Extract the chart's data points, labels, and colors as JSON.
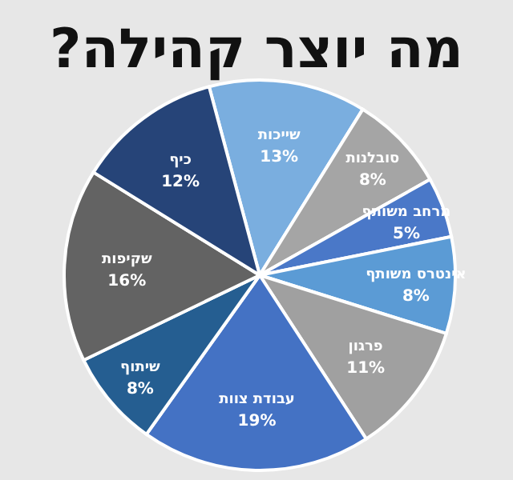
{
  "chart_data": {
    "type": "pie",
    "title": "מה יוצר קהילה?",
    "categories": [
      "שייכות",
      "סובלנות",
      "מרחב משותף",
      "אינטרס משותף",
      "פרגון",
      "עבודת צוות",
      "שיתוף",
      "שקיפות",
      "כיף"
    ],
    "values": [
      13,
      8,
      5,
      8,
      11,
      19,
      8,
      16,
      12
    ],
    "colors": [
      "#7aaedf",
      "#a5a5a5",
      "#4a78c8",
      "#5b9bd5",
      "#a0a0a0",
      "#4472c4",
      "#255e91",
      "#636363",
      "#264478"
    ],
    "value_labels": [
      "13%",
      "8%",
      "5%",
      "8%",
      "11%",
      "19%",
      "8%",
      "16%",
      "12%"
    ]
  }
}
